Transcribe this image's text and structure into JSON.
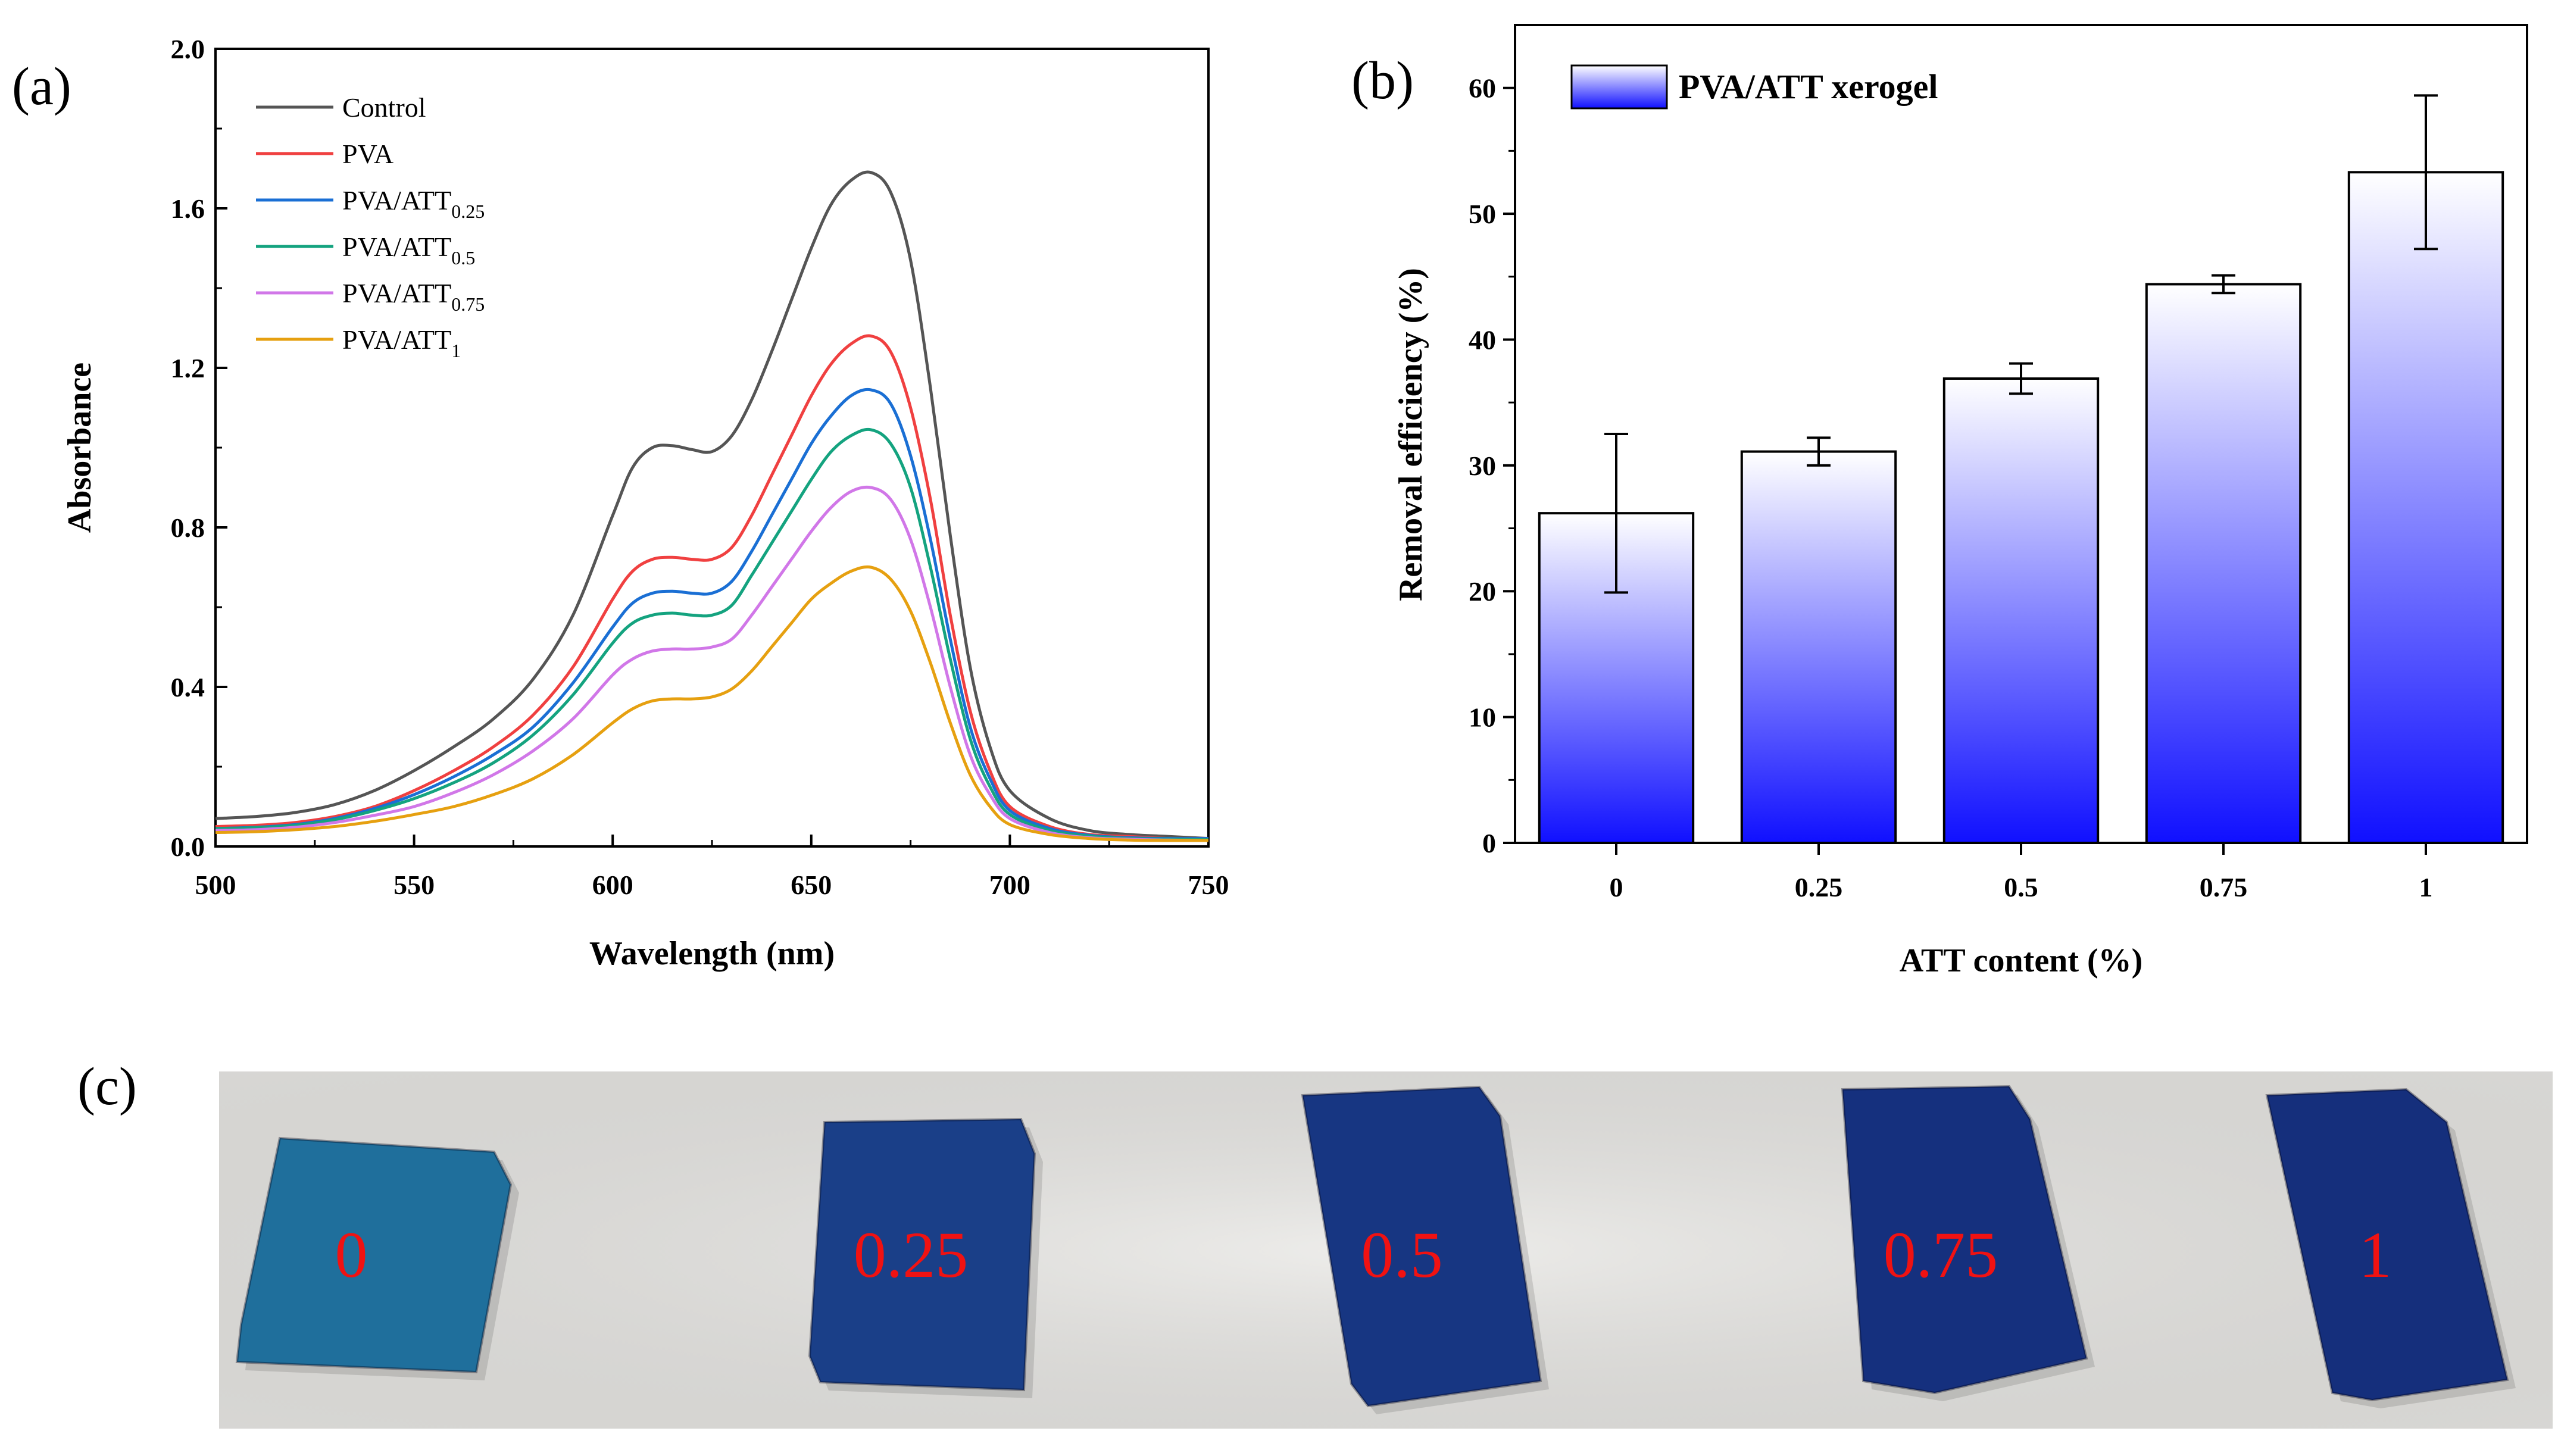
{
  "panel_labels": {
    "a": "(a)",
    "b": "(b)",
    "c": "(c)"
  },
  "chart_data": [
    {
      "type": "line",
      "xlabel": "Wavelength (nm)",
      "ylabel": "Absorbance",
      "xlim": [
        500,
        750
      ],
      "ylim": [
        0,
        2.0
      ],
      "xticks": [
        "500",
        "550",
        "600",
        "650",
        "700",
        "750"
      ],
      "yticks": [
        "0.0",
        "0.4",
        "0.8",
        "1.2",
        "1.6",
        "2.0"
      ],
      "grid": false,
      "legend": {
        "placement": "top-left"
      },
      "x": [
        500,
        510,
        520,
        530,
        540,
        550,
        560,
        570,
        580,
        590,
        600,
        605,
        610,
        615,
        620,
        625,
        630,
        635,
        640,
        645,
        650,
        655,
        660,
        665,
        670,
        675,
        680,
        685,
        690,
        695,
        700,
        710,
        720,
        730,
        740,
        750
      ],
      "series": [
        {
          "name": "Control",
          "sub": "",
          "color": "#555555",
          "values": [
            0.07,
            0.075,
            0.085,
            0.105,
            0.14,
            0.19,
            0.25,
            0.32,
            0.42,
            0.58,
            0.83,
            0.95,
            1.0,
            1.005,
            0.995,
            0.99,
            1.03,
            1.12,
            1.24,
            1.37,
            1.5,
            1.61,
            1.67,
            1.69,
            1.64,
            1.47,
            1.15,
            0.78,
            0.45,
            0.25,
            0.14,
            0.07,
            0.04,
            0.03,
            0.025,
            0.02
          ]
        },
        {
          "name": "PVA",
          "sub": "",
          "color": "#f04040",
          "values": [
            0.05,
            0.053,
            0.06,
            0.075,
            0.1,
            0.14,
            0.19,
            0.25,
            0.33,
            0.45,
            0.62,
            0.69,
            0.72,
            0.725,
            0.72,
            0.72,
            0.75,
            0.83,
            0.93,
            1.03,
            1.13,
            1.21,
            1.26,
            1.28,
            1.24,
            1.1,
            0.87,
            0.58,
            0.34,
            0.19,
            0.1,
            0.05,
            0.03,
            0.025,
            0.02,
            0.02
          ]
        },
        {
          "name": "PVA/ATT",
          "sub": "0.25",
          "color": "#1a6fd4",
          "values": [
            0.045,
            0.048,
            0.055,
            0.07,
            0.095,
            0.13,
            0.175,
            0.23,
            0.3,
            0.41,
            0.55,
            0.61,
            0.635,
            0.64,
            0.635,
            0.635,
            0.665,
            0.74,
            0.83,
            0.92,
            1.01,
            1.08,
            1.13,
            1.145,
            1.11,
            0.98,
            0.77,
            0.52,
            0.3,
            0.17,
            0.09,
            0.045,
            0.028,
            0.022,
            0.02,
            0.02
          ]
        },
        {
          "name": "PVA/ATT",
          "sub": "0.5",
          "color": "#14a37f",
          "values": [
            0.045,
            0.047,
            0.053,
            0.067,
            0.09,
            0.12,
            0.16,
            0.21,
            0.28,
            0.38,
            0.51,
            0.56,
            0.58,
            0.585,
            0.58,
            0.58,
            0.605,
            0.68,
            0.76,
            0.84,
            0.92,
            0.99,
            1.03,
            1.045,
            1.01,
            0.9,
            0.7,
            0.47,
            0.27,
            0.15,
            0.08,
            0.04,
            0.026,
            0.02,
            0.018,
            0.017
          ]
        },
        {
          "name": "PVA/ATT",
          "sub": "0.75",
          "color": "#d177e8",
          "values": [
            0.04,
            0.042,
            0.048,
            0.06,
            0.078,
            0.1,
            0.135,
            0.18,
            0.24,
            0.32,
            0.43,
            0.47,
            0.49,
            0.495,
            0.495,
            0.5,
            0.52,
            0.58,
            0.65,
            0.72,
            0.79,
            0.85,
            0.89,
            0.9,
            0.87,
            0.77,
            0.6,
            0.4,
            0.23,
            0.13,
            0.07,
            0.035,
            0.022,
            0.018,
            0.016,
            0.015
          ]
        },
        {
          "name": "PVA/ATT",
          "sub": "1",
          "color": "#e6a010",
          "values": [
            0.035,
            0.037,
            0.042,
            0.05,
            0.063,
            0.08,
            0.1,
            0.13,
            0.17,
            0.23,
            0.31,
            0.345,
            0.365,
            0.37,
            0.37,
            0.375,
            0.395,
            0.44,
            0.5,
            0.56,
            0.62,
            0.66,
            0.69,
            0.7,
            0.67,
            0.59,
            0.46,
            0.31,
            0.18,
            0.1,
            0.055,
            0.03,
            0.02,
            0.016,
            0.015,
            0.015
          ]
        }
      ]
    },
    {
      "type": "bar",
      "xlabel": "ATT content (%)",
      "ylabel": "Removal efficiency (%)",
      "ylim": [
        0,
        65
      ],
      "yticks": [
        "0",
        "10",
        "20",
        "30",
        "40",
        "50",
        "60"
      ],
      "categories": [
        "0",
        "0.25",
        "0.5",
        "0.75",
        "1"
      ],
      "grid": false,
      "legend": {
        "placement": "top-left"
      },
      "series": [
        {
          "name": "PVA/ATT xerogel",
          "values": [
            26.2,
            31.1,
            36.9,
            44.4,
            53.3
          ],
          "errors": [
            6.3,
            1.1,
            1.2,
            0.7,
            6.1
          ]
        }
      ],
      "fill_gradient": {
        "top": "#ffffff",
        "bottom": "#1010ff"
      }
    }
  ],
  "photo": {
    "background": "#e8e7e4",
    "samples": [
      {
        "label": "0",
        "color": "#1f6f9c"
      },
      {
        "label": "0.25",
        "color": "#1a3f88"
      },
      {
        "label": "0.5",
        "color": "#173682"
      },
      {
        "label": "0.75",
        "color": "#15307e"
      },
      {
        "label": "1",
        "color": "#152f7c"
      }
    ],
    "label_color": "#f01212"
  }
}
